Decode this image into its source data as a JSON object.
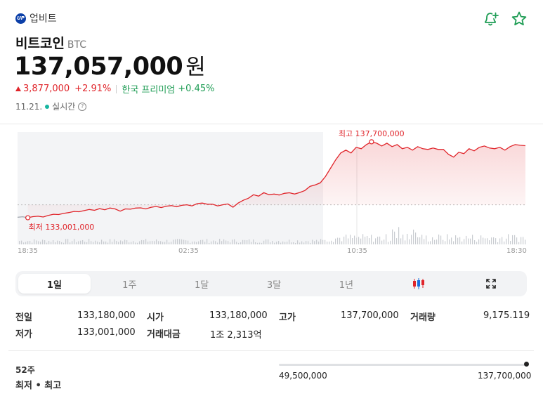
{
  "header": {
    "exchange_logo": "UP",
    "exchange_name": "업비트",
    "icons": [
      "bell-plus-icon",
      "star-icon"
    ]
  },
  "coin": {
    "name": "비트코인",
    "symbol": "BTC",
    "price": "137,057,000",
    "price_unit": "원",
    "change_amount": "3,877,000",
    "change_percent": "+2.91%",
    "premium_label": "한국 프리미엄",
    "premium_value": "+0.45%",
    "date": "11.21.",
    "realtime_label": "실시간"
  },
  "chart_data": {
    "type": "line",
    "x_ticks": [
      "18:35",
      "02:35",
      "10:35",
      "18:30"
    ],
    "high_label": "최고 137,700,000",
    "low_label": "최저 133,001,000",
    "reference_line": 133180000,
    "ylim": [
      132000000,
      138300000
    ],
    "series": [
      {
        "values": [
          132280000,
          132320000,
          132250000,
          132330000,
          132360000,
          132300000,
          132420000,
          132500000,
          132480000,
          132560000,
          132620000,
          132700000,
          132680000,
          132760000,
          132840000,
          132780000,
          132900000,
          132820000,
          132950000,
          132880000,
          132720000,
          132880000,
          132860000,
          132940000,
          132960000,
          132880000,
          133000000,
          133060000,
          132980000,
          133080000,
          133120000,
          133040000,
          133140000,
          133180000,
          133100000,
          133260000,
          133300000,
          133220000,
          133220000,
          133100000,
          133180000,
          133240000,
          133001000,
          133300000,
          133500000,
          133650000,
          133900000,
          133800000,
          134050000,
          133900000,
          133950000,
          133880000,
          134000000,
          134040000,
          133950000,
          134060000,
          134200000,
          134500000,
          134600000,
          134750000,
          135200000,
          135800000,
          136400000,
          136900000,
          137100000,
          136900000,
          137300000,
          137200000,
          137500000,
          137700000,
          137600000,
          137400000,
          137600000,
          137350000,
          137500000,
          137200000,
          137300000,
          137100000,
          137350000,
          137200000,
          137150000,
          137250000,
          137150000,
          137150000,
          136800000,
          136600000,
          136950000,
          136850000,
          137200000,
          137050000,
          137300000,
          137400000,
          137250000,
          137200000,
          137300000,
          137100000,
          137350000,
          137500000,
          137450000,
          137420000
        ]
      }
    ]
  },
  "tabs": [
    {
      "label": "1일",
      "active": true
    },
    {
      "label": "1주"
    },
    {
      "label": "1달"
    },
    {
      "label": "3달"
    },
    {
      "label": "1년"
    },
    {
      "label": "",
      "icon": "candlestick-icon"
    },
    {
      "label": "",
      "icon": "expand-icon"
    }
  ],
  "stats": {
    "prev_close_label": "전일",
    "prev_close": "133,180,000",
    "open_label": "시가",
    "open": "133,180,000",
    "high_label": "고가",
    "high": "137,700,000",
    "volume_label": "거래량",
    "volume": "9,175.119",
    "low_label": "저가",
    "low": "133,001,000",
    "trade_value_label": "거래대금",
    "trade_value": "1조 2,313억"
  },
  "week52": {
    "label1": "52주",
    "label2": "최저 • 최고",
    "low": "49,500,000",
    "high": "137,700,000",
    "position": 1.0
  },
  "colors": {
    "up": "#e0242a",
    "down": "#1a6fe0",
    "green": "#1f9d55",
    "past_line": "#9aa0a8"
  }
}
